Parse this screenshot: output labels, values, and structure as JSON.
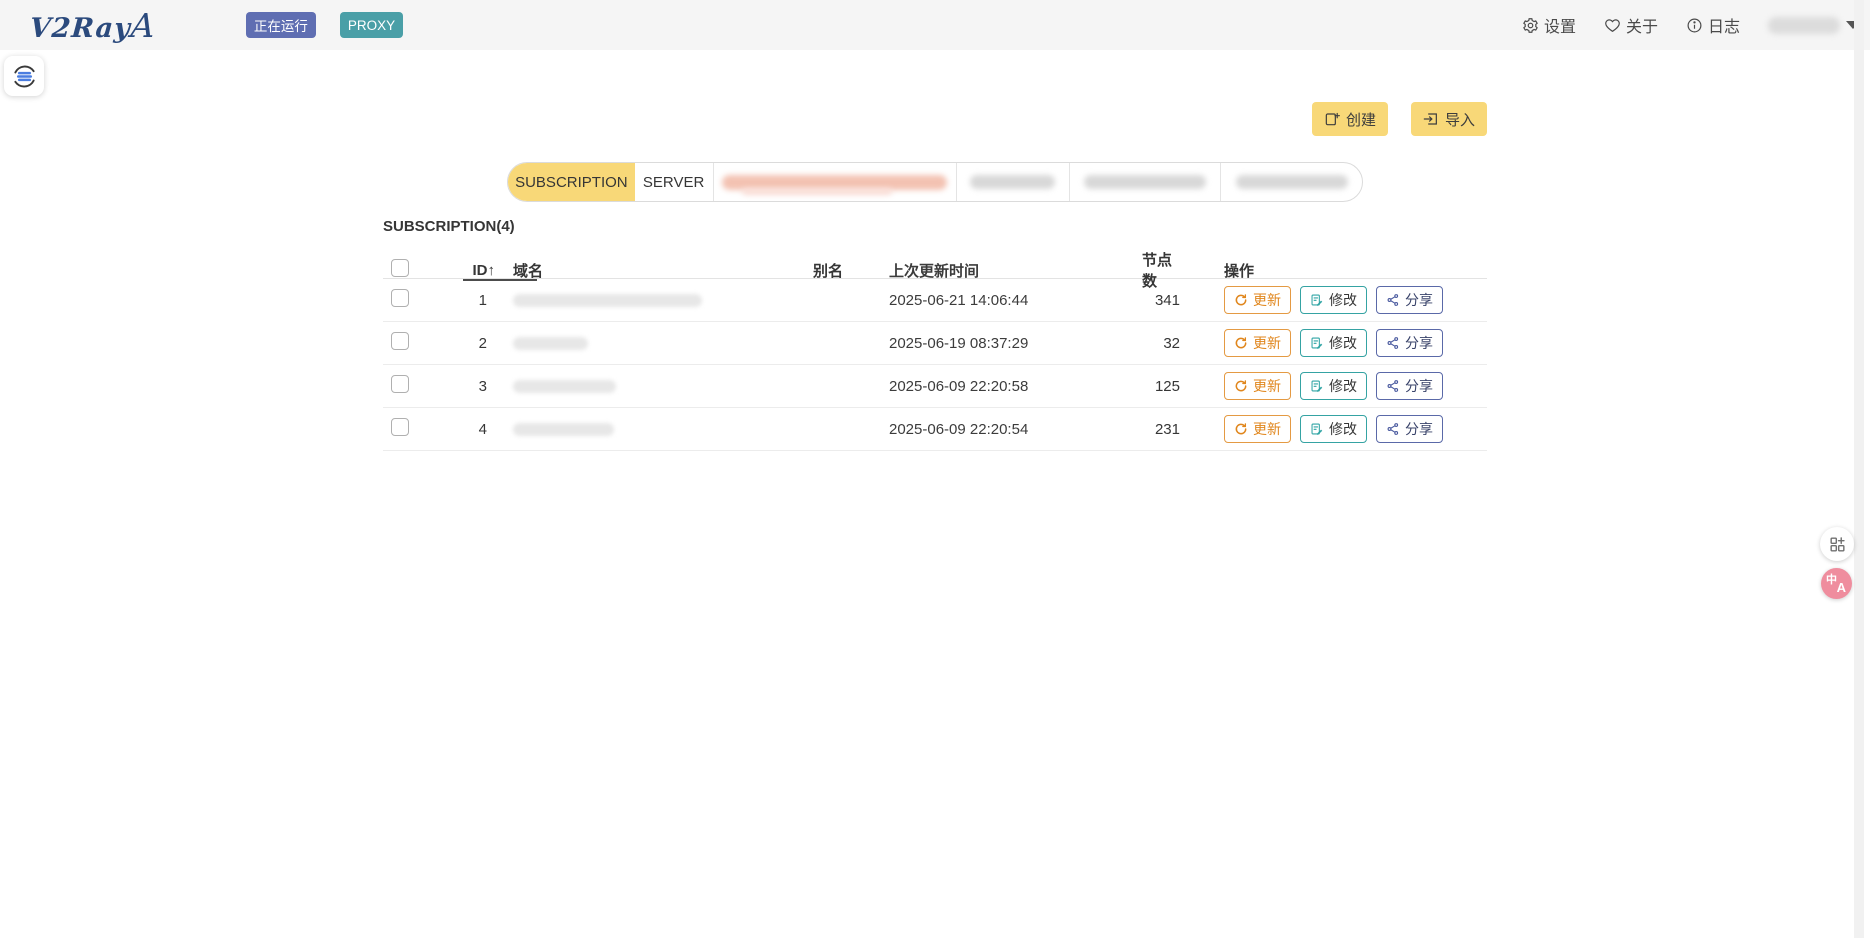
{
  "header": {
    "logo": "V2RayA",
    "status_badge": "正在运行",
    "proxy_badge": "PROXY",
    "nav": {
      "settings": "设置",
      "about": "关于",
      "logs": "日志"
    }
  },
  "toolbar": {
    "create": "创建",
    "import": "导入"
  },
  "tabs": {
    "subscription": "SUBSCRIPTION",
    "server": "SERVER"
  },
  "subscription": {
    "title": "SUBSCRIPTION(4)",
    "columns": {
      "id": "ID",
      "sort_arrow": "↑",
      "domain": "域名",
      "alias": "别名",
      "updated": "上次更新时间",
      "nodes": "节点数",
      "actions": "操作"
    },
    "row_actions": {
      "update": "更新",
      "modify": "修改",
      "share": "分享"
    },
    "rows": [
      {
        "id": "1",
        "updated": "2025-06-21 14:06:44",
        "nodes": "341"
      },
      {
        "id": "2",
        "updated": "2025-06-19 08:37:29",
        "nodes": "32"
      },
      {
        "id": "3",
        "updated": "2025-06-09 22:20:58",
        "nodes": "125"
      },
      {
        "id": "4",
        "updated": "2025-06-09 22:20:54",
        "nodes": "231"
      }
    ]
  },
  "floating": {
    "language_zh": "中",
    "language_en": "A"
  },
  "icons": {
    "settings": "gear-icon",
    "about": "heart-icon",
    "logs": "info-icon",
    "user": "chevron-down-icon",
    "create": "clipboard-plus-icon",
    "import": "import-icon",
    "update": "refresh-icon",
    "modify": "edit-icon",
    "share": "share-nodes-icon",
    "left_widget": "sync-list-icon",
    "fab_white": "grid-add-icon",
    "fab_pink": "translate-icon"
  },
  "colors": {
    "topbar_bg": "#f5f5f5",
    "accent_yellow": "#f8d878",
    "badge_running": "#5f6eb2",
    "badge_proxy": "#4a9fa7",
    "update_orange": "#e0861c",
    "modify_teal": "#2fa4a4",
    "share_navy": "#4a5a9f",
    "language_pink": "#ef8d9e",
    "logo_navy": "#2b4a7d"
  }
}
